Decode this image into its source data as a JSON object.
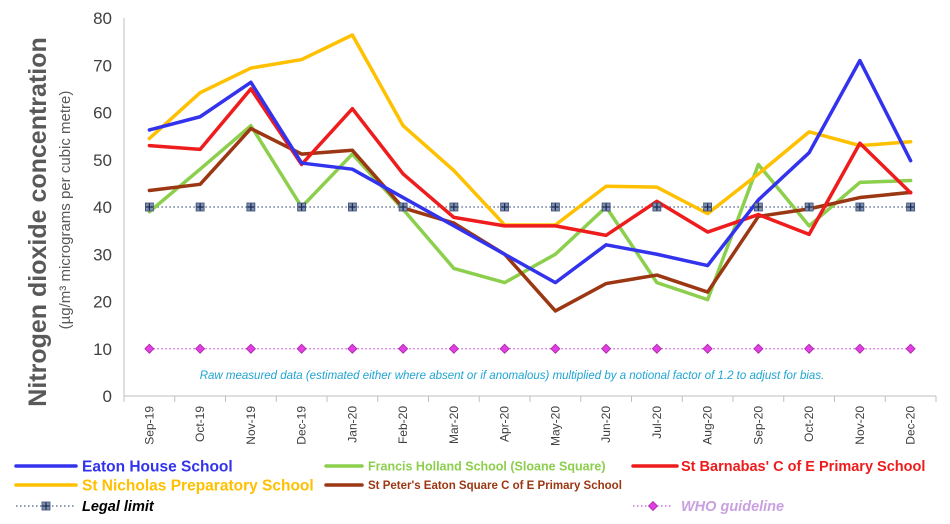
{
  "chart_data": {
    "type": "line",
    "title": "",
    "ylabel": "Nitrogen dioxide concentration",
    "ylabel_sub": "(µg/m³ micrograms per cubic metre)",
    "xlabel": "",
    "ylim": [
      0,
      80
    ],
    "yticks": [
      "0",
      "10",
      "20",
      "30",
      "40",
      "50",
      "60",
      "70",
      "80"
    ],
    "grid": false,
    "categories": [
      "Sep-19",
      "Oct-19",
      "Nov-19",
      "Dec-19",
      "Jan-20",
      "Feb-20",
      "Mar-20",
      "Apr-20",
      "May-20",
      "Jun-20",
      "Jul-20",
      "Aug-20",
      "Sep-20",
      "Oct-20",
      "Nov-20",
      "Dec-20"
    ],
    "annotation": "Raw measured data (estimated either where absent or if anomalous) multiplied by a notional factor of 1.2 to adjust for bias.",
    "series": [
      {
        "name": "Eaton House School",
        "color": "#3333ee",
        "values": [
          56.3,
          59.1,
          66.4,
          49.3,
          48.0,
          42.0,
          36.0,
          30.0,
          24.0,
          32.0,
          30.0,
          27.6,
          41.5,
          51.5,
          71.0,
          49.8
        ]
      },
      {
        "name": "Francis Holland School (Sloane Square)",
        "color": "#8ccf4d",
        "values": [
          39.0,
          48.0,
          57.2,
          40.0,
          51.2,
          39.5,
          27.0,
          24.0,
          30.0,
          40.0,
          24.0,
          20.4,
          49.0,
          36.0,
          45.2,
          45.6
        ]
      },
      {
        "name": "St Barnabas' C of E Primary School",
        "color": "#ee1c1c",
        "values": [
          53.0,
          52.2,
          65.0,
          49.0,
          60.8,
          47.0,
          37.8,
          36.0,
          36.0,
          34.0,
          41.2,
          34.7,
          38.4,
          34.2,
          53.5,
          43.0
        ]
      },
      {
        "name": "St Nicholas Preparatory School",
        "color": "#ffc000",
        "values": [
          54.5,
          64.2,
          69.4,
          71.2,
          76.4,
          57.2,
          47.7,
          36.2,
          36.2,
          44.4,
          44.2,
          38.6,
          47.0,
          55.9,
          53.0,
          53.8
        ]
      },
      {
        "name": "St Peter's Eaton Square C of E Primary School",
        "color": "#9b3712",
        "values": [
          43.5,
          44.8,
          56.6,
          51.2,
          52.0,
          39.8,
          36.6,
          30.0,
          18.0,
          23.8,
          25.6,
          22.0,
          38.0,
          39.6,
          42.0,
          43.1
        ]
      },
      {
        "name": "Legal limit",
        "color": "#4a5f8a",
        "style": "dotted",
        "marker": "plus-square",
        "values": [
          40,
          40,
          40,
          40,
          40,
          40,
          40,
          40,
          40,
          40,
          40,
          40,
          40,
          40,
          40,
          40
        ]
      },
      {
        "name": "WHO guideline",
        "color": "#cc55dd",
        "style": "dotted",
        "marker": "diamond",
        "values": [
          10,
          10,
          10,
          10,
          10,
          10,
          10,
          10,
          10,
          10,
          10,
          10,
          10,
          10,
          10,
          10
        ]
      }
    ],
    "legend": {
      "placement": "bottom",
      "items": [
        {
          "label": "Eaton House School",
          "color": "#3333ee",
          "style": "solid",
          "text_color": "#3333ee"
        },
        {
          "label": "Francis Holland School (Sloane Square)",
          "color": "#8ccf4d",
          "style": "solid",
          "text_color": "#8ccf4d"
        },
        {
          "label": "St Barnabas' C of E Primary School",
          "color": "#ee1c1c",
          "style": "solid",
          "text_color": "#ee1c1c"
        },
        {
          "label": "St Nicholas Preparatory School",
          "color": "#ffc000",
          "style": "solid",
          "text_color": "#ffc000"
        },
        {
          "label": "St Peter's Eaton Square C of E Primary School",
          "color": "#9b3712",
          "style": "solid",
          "text_color": "#9b3712"
        },
        {
          "label": "Legal limit",
          "color": "#4a5f8a",
          "style": "dotted",
          "marker": "plus-square",
          "text_color": "#000000"
        },
        {
          "label": "WHO guideline",
          "color": "#cc55dd",
          "style": "dotted",
          "marker": "diamond",
          "text_color": "#c9a0e0"
        }
      ]
    }
  }
}
